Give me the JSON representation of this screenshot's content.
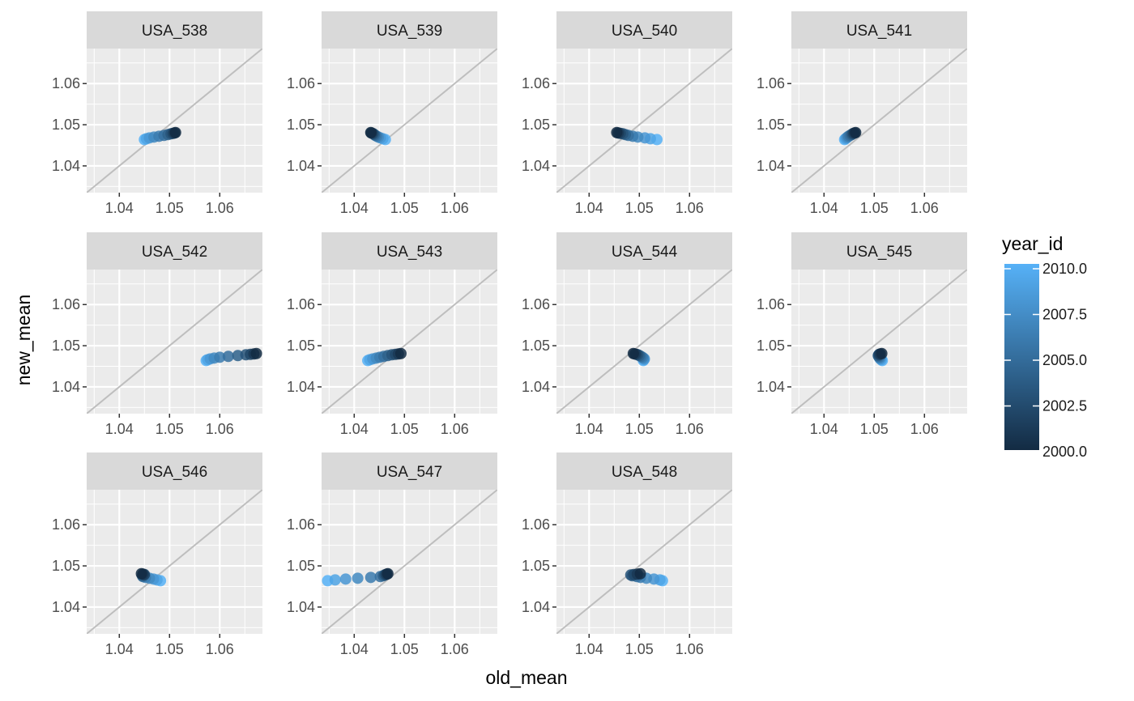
{
  "chart_data": {
    "type": "scatter",
    "layout": "facet_wrap",
    "xlabel": "old_mean",
    "ylabel": "new_mean",
    "xlim": [
      1.0335,
      1.0685
    ],
    "ylim": [
      1.0335,
      1.0685
    ],
    "x_ticks": [
      1.04,
      1.05,
      1.06
    ],
    "x_tick_labels": [
      "1.04",
      "1.05",
      "1.06"
    ],
    "y_ticks": [
      1.04,
      1.05,
      1.06
    ],
    "y_tick_labels": [
      "1.04",
      "1.05",
      "1.06"
    ],
    "reference_line": "y = x",
    "grid": true,
    "legend": {
      "title": "year_id",
      "position": "right",
      "type": "colorbar",
      "range": [
        2000,
        2010
      ],
      "breaks": [
        2000,
        2002.5,
        2005,
        2007.5,
        2010
      ],
      "break_labels": [
        "2000.0",
        "2002.5",
        "2005.0",
        "2007.5",
        "2010.0"
      ],
      "color_low": "#132B43",
      "color_high": "#56B1F7"
    },
    "facets": [
      {
        "name": "USA_538",
        "points": [
          {
            "year": 2000,
            "x": 1.0512,
            "y": 1.0481
          },
          {
            "year": 2001,
            "x": 1.051,
            "y": 1.048
          },
          {
            "year": 2002,
            "x": 1.0507,
            "y": 1.0479
          },
          {
            "year": 2003,
            "x": 1.0503,
            "y": 1.0478
          },
          {
            "year": 2004,
            "x": 1.0497,
            "y": 1.0476
          },
          {
            "year": 2005,
            "x": 1.0489,
            "y": 1.0474
          },
          {
            "year": 2006,
            "x": 1.0479,
            "y": 1.0472
          },
          {
            "year": 2007,
            "x": 1.0469,
            "y": 1.047
          },
          {
            "year": 2008,
            "x": 1.046,
            "y": 1.0468
          },
          {
            "year": 2009,
            "x": 1.0454,
            "y": 1.0466
          },
          {
            "year": 2010,
            "x": 1.045,
            "y": 1.0464
          }
        ]
      },
      {
        "name": "USA_539",
        "points": [
          {
            "year": 2000,
            "x": 1.0433,
            "y": 1.0481
          },
          {
            "year": 2001,
            "x": 1.0434,
            "y": 1.048
          },
          {
            "year": 2002,
            "x": 1.0436,
            "y": 1.0479
          },
          {
            "year": 2003,
            "x": 1.0438,
            "y": 1.0478
          },
          {
            "year": 2004,
            "x": 1.044,
            "y": 1.0476
          },
          {
            "year": 2005,
            "x": 1.0442,
            "y": 1.0474
          },
          {
            "year": 2006,
            "x": 1.0445,
            "y": 1.0472
          },
          {
            "year": 2007,
            "x": 1.0448,
            "y": 1.047
          },
          {
            "year": 2008,
            "x": 1.0452,
            "y": 1.0468
          },
          {
            "year": 2009,
            "x": 1.0457,
            "y": 1.0466
          },
          {
            "year": 2010,
            "x": 1.0462,
            "y": 1.0464
          }
        ]
      },
      {
        "name": "USA_540",
        "points": [
          {
            "year": 2000,
            "x": 1.0455,
            "y": 1.0481
          },
          {
            "year": 2001,
            "x": 1.0458,
            "y": 1.048
          },
          {
            "year": 2002,
            "x": 1.0462,
            "y": 1.0479
          },
          {
            "year": 2003,
            "x": 1.0467,
            "y": 1.0478
          },
          {
            "year": 2004,
            "x": 1.0472,
            "y": 1.0476
          },
          {
            "year": 2005,
            "x": 1.0478,
            "y": 1.0474
          },
          {
            "year": 2006,
            "x": 1.0487,
            "y": 1.0472
          },
          {
            "year": 2007,
            "x": 1.0497,
            "y": 1.047
          },
          {
            "year": 2008,
            "x": 1.0511,
            "y": 1.0468
          },
          {
            "year": 2009,
            "x": 1.0522,
            "y": 1.0466
          },
          {
            "year": 2010,
            "x": 1.0535,
            "y": 1.0464
          }
        ]
      },
      {
        "name": "USA_541",
        "points": [
          {
            "year": 2000,
            "x": 1.0463,
            "y": 1.0481
          },
          {
            "year": 2001,
            "x": 1.0461,
            "y": 1.048
          },
          {
            "year": 2002,
            "x": 1.0459,
            "y": 1.0479
          },
          {
            "year": 2003,
            "x": 1.0457,
            "y": 1.0478
          },
          {
            "year": 2004,
            "x": 1.0455,
            "y": 1.0476
          },
          {
            "year": 2005,
            "x": 1.0452,
            "y": 1.0474
          },
          {
            "year": 2006,
            "x": 1.0449,
            "y": 1.0472
          },
          {
            "year": 2007,
            "x": 1.0447,
            "y": 1.047
          },
          {
            "year": 2008,
            "x": 1.0445,
            "y": 1.0468
          },
          {
            "year": 2009,
            "x": 1.0443,
            "y": 1.0466
          },
          {
            "year": 2010,
            "x": 1.0441,
            "y": 1.0464
          }
        ]
      },
      {
        "name": "USA_542",
        "points": [
          {
            "year": 2000,
            "x": 1.0673,
            "y": 1.0481
          },
          {
            "year": 2001,
            "x": 1.0668,
            "y": 1.048
          },
          {
            "year": 2002,
            "x": 1.0661,
            "y": 1.0479
          },
          {
            "year": 2003,
            "x": 1.0652,
            "y": 1.0478
          },
          {
            "year": 2004,
            "x": 1.0636,
            "y": 1.0476
          },
          {
            "year": 2005,
            "x": 1.0617,
            "y": 1.0474
          },
          {
            "year": 2006,
            "x": 1.06,
            "y": 1.0472
          },
          {
            "year": 2007,
            "x": 1.0589,
            "y": 1.047
          },
          {
            "year": 2008,
            "x": 1.0581,
            "y": 1.0468
          },
          {
            "year": 2009,
            "x": 1.0576,
            "y": 1.0466
          },
          {
            "year": 2010,
            "x": 1.0573,
            "y": 1.0464
          }
        ]
      },
      {
        "name": "USA_543",
        "points": [
          {
            "year": 2000,
            "x": 1.0493,
            "y": 1.0481
          },
          {
            "year": 2001,
            "x": 1.0488,
            "y": 1.048
          },
          {
            "year": 2002,
            "x": 1.0482,
            "y": 1.0479
          },
          {
            "year": 2003,
            "x": 1.0475,
            "y": 1.0478
          },
          {
            "year": 2004,
            "x": 1.0467,
            "y": 1.0476
          },
          {
            "year": 2005,
            "x": 1.0459,
            "y": 1.0474
          },
          {
            "year": 2006,
            "x": 1.0451,
            "y": 1.0472
          },
          {
            "year": 2007,
            "x": 1.0444,
            "y": 1.047
          },
          {
            "year": 2008,
            "x": 1.0437,
            "y": 1.0468
          },
          {
            "year": 2009,
            "x": 1.0431,
            "y": 1.0466
          },
          {
            "year": 2010,
            "x": 1.0427,
            "y": 1.0464
          }
        ]
      },
      {
        "name": "USA_544",
        "points": [
          {
            "year": 2000,
            "x": 1.0488,
            "y": 1.0481
          },
          {
            "year": 2001,
            "x": 1.0491,
            "y": 1.048
          },
          {
            "year": 2002,
            "x": 1.0494,
            "y": 1.0479
          },
          {
            "year": 2003,
            "x": 1.0497,
            "y": 1.0478
          },
          {
            "year": 2004,
            "x": 1.05,
            "y": 1.0476
          },
          {
            "year": 2005,
            "x": 1.0503,
            "y": 1.0474
          },
          {
            "year": 2006,
            "x": 1.0506,
            "y": 1.0472
          },
          {
            "year": 2007,
            "x": 1.0508,
            "y": 1.047
          },
          {
            "year": 2008,
            "x": 1.051,
            "y": 1.0468
          },
          {
            "year": 2009,
            "x": 1.0509,
            "y": 1.0466
          },
          {
            "year": 2010,
            "x": 1.0508,
            "y": 1.0464
          }
        ]
      },
      {
        "name": "USA_545",
        "points": [
          {
            "year": 2000,
            "x": 1.0515,
            "y": 1.0481
          },
          {
            "year": 2001,
            "x": 1.0512,
            "y": 1.048
          },
          {
            "year": 2002,
            "x": 1.051,
            "y": 1.0479
          },
          {
            "year": 2003,
            "x": 1.0509,
            "y": 1.0478
          },
          {
            "year": 2004,
            "x": 1.0508,
            "y": 1.0476
          },
          {
            "year": 2005,
            "x": 1.0509,
            "y": 1.0474
          },
          {
            "year": 2006,
            "x": 1.051,
            "y": 1.0472
          },
          {
            "year": 2007,
            "x": 1.0511,
            "y": 1.047
          },
          {
            "year": 2008,
            "x": 1.0512,
            "y": 1.0468
          },
          {
            "year": 2009,
            "x": 1.0514,
            "y": 1.0466
          },
          {
            "year": 2010,
            "x": 1.0516,
            "y": 1.0464
          }
        ]
      },
      {
        "name": "USA_546",
        "points": [
          {
            "year": 2000,
            "x": 1.0444,
            "y": 1.0481
          },
          {
            "year": 2001,
            "x": 1.0447,
            "y": 1.048
          },
          {
            "year": 2002,
            "x": 1.045,
            "y": 1.0479
          },
          {
            "year": 2003,
            "x": 1.0449,
            "y": 1.0478
          },
          {
            "year": 2004,
            "x": 1.0446,
            "y": 1.0476
          },
          {
            "year": 2005,
            "x": 1.0447,
            "y": 1.0474
          },
          {
            "year": 2006,
            "x": 1.0452,
            "y": 1.0472
          },
          {
            "year": 2007,
            "x": 1.046,
            "y": 1.047
          },
          {
            "year": 2008,
            "x": 1.0468,
            "y": 1.0468
          },
          {
            "year": 2009,
            "x": 1.0475,
            "y": 1.0466
          },
          {
            "year": 2010,
            "x": 1.0482,
            "y": 1.0464
          }
        ]
      },
      {
        "name": "USA_547",
        "points": [
          {
            "year": 2000,
            "x": 1.0467,
            "y": 1.0481
          },
          {
            "year": 2001,
            "x": 1.0465,
            "y": 1.048
          },
          {
            "year": 2002,
            "x": 1.0463,
            "y": 1.0479
          },
          {
            "year": 2003,
            "x": 1.0461,
            "y": 1.0478
          },
          {
            "year": 2004,
            "x": 1.0458,
            "y": 1.0476
          },
          {
            "year": 2005,
            "x": 1.0452,
            "y": 1.0474
          },
          {
            "year": 2006,
            "x": 1.0433,
            "y": 1.0472
          },
          {
            "year": 2007,
            "x": 1.0407,
            "y": 1.047
          },
          {
            "year": 2008,
            "x": 1.0383,
            "y": 1.0468
          },
          {
            "year": 2009,
            "x": 1.0362,
            "y": 1.0466
          },
          {
            "year": 2010,
            "x": 1.0347,
            "y": 1.0464
          }
        ]
      },
      {
        "name": "USA_548",
        "points": [
          {
            "year": 2000,
            "x": 1.0502,
            "y": 1.0481
          },
          {
            "year": 2001,
            "x": 1.0496,
            "y": 1.048
          },
          {
            "year": 2002,
            "x": 1.0489,
            "y": 1.0479
          },
          {
            "year": 2003,
            "x": 1.0483,
            "y": 1.0478
          },
          {
            "year": 2004,
            "x": 1.0486,
            "y": 1.0476
          },
          {
            "year": 2005,
            "x": 1.0495,
            "y": 1.0474
          },
          {
            "year": 2006,
            "x": 1.0502,
            "y": 1.0472
          },
          {
            "year": 2007,
            "x": 1.0514,
            "y": 1.047
          },
          {
            "year": 2008,
            "x": 1.0529,
            "y": 1.0468
          },
          {
            "year": 2009,
            "x": 1.0541,
            "y": 1.0466
          },
          {
            "year": 2010,
            "x": 1.0546,
            "y": 1.0464
          }
        ]
      }
    ]
  }
}
